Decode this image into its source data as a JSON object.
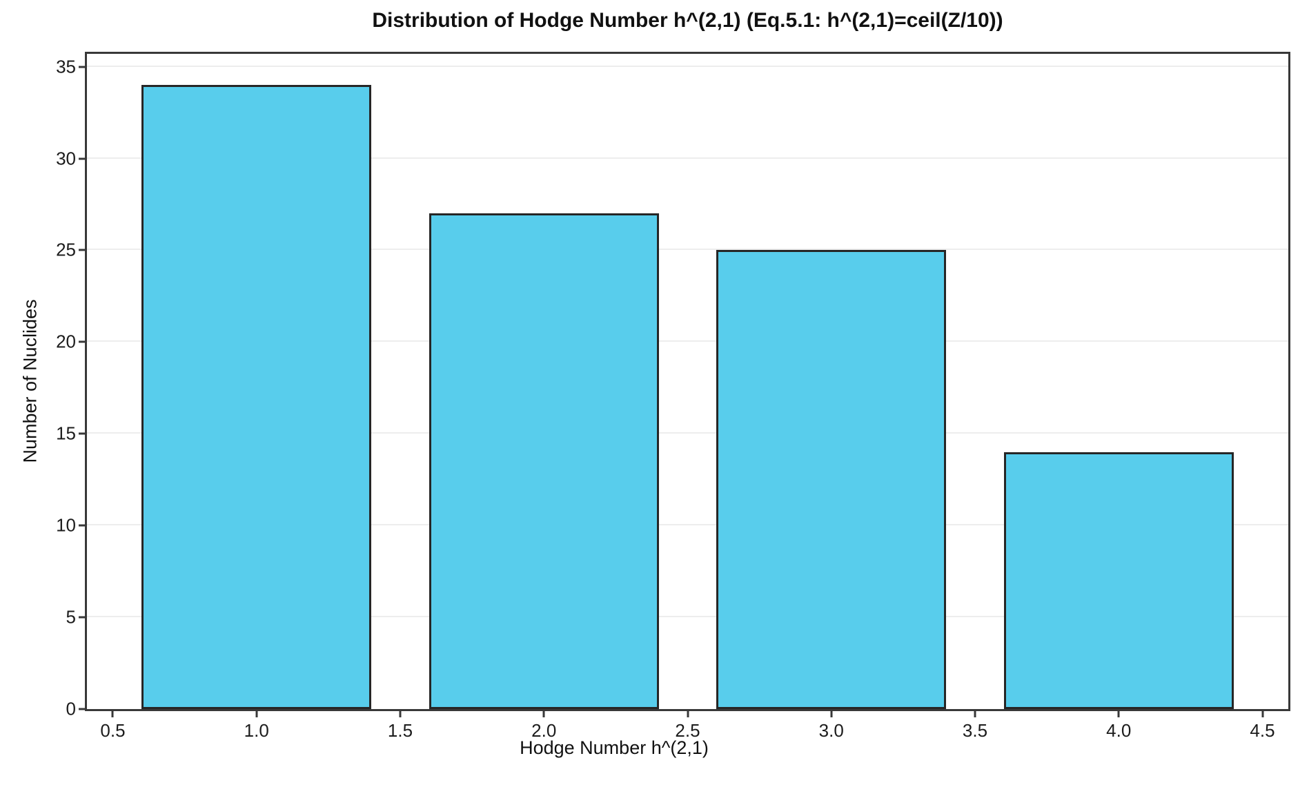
{
  "chart_data": {
    "type": "bar",
    "title": "Distribution of Hodge Number h^(2,1) (Eq.5.1: h^(2,1)=ceil(Z/10))",
    "xlabel": "Hodge Number h^(2,1)",
    "ylabel": "Number of Nuclides",
    "x": [
      1,
      2,
      3,
      4
    ],
    "values": [
      34,
      27,
      25,
      14
    ],
    "bar_width": 0.8,
    "xtick_values": [
      0.5,
      1.0,
      1.5,
      2.0,
      2.5,
      3.0,
      3.5,
      4.0,
      4.5
    ],
    "xtick_labels": [
      "0.5",
      "1.0",
      "1.5",
      "2.0",
      "2.5",
      "3.0",
      "3.5",
      "4.0",
      "4.5"
    ],
    "ytick_values": [
      0,
      5,
      10,
      15,
      20,
      25,
      30,
      35
    ],
    "ytick_labels": [
      "0",
      "5",
      "10",
      "15",
      "20",
      "25",
      "30",
      "35"
    ],
    "xlim": [
      0.41,
      4.59
    ],
    "ylim": [
      0,
      35.7
    ],
    "grid": "horizontal",
    "legend": null,
    "colors": {
      "bar_fill": "#58cdec",
      "bar_edge": "#262626",
      "grid": "#ededed",
      "spine": "#383838",
      "text": "#111111",
      "background": "#ffffff"
    }
  }
}
